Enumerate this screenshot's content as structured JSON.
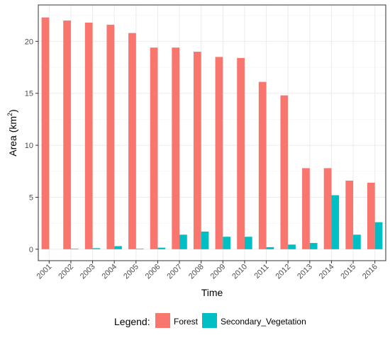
{
  "chart_data": {
    "type": "bar",
    "title": "",
    "xlabel": "Time",
    "ylabel_main": "Area (km",
    "ylabel_sup": "2",
    "ylabel_close": ")",
    "categories": [
      "2001",
      "2002",
      "2003",
      "2004",
      "2005",
      "2006",
      "2007",
      "2008",
      "2009",
      "2010",
      "2011",
      "2012",
      "2013",
      "2014",
      "2015",
      "2016"
    ],
    "series": [
      {
        "name": "Forest",
        "color": "#F8766D",
        "values": [
          22.3,
          22.0,
          21.8,
          21.6,
          20.8,
          19.4,
          19.4,
          19.0,
          18.5,
          18.4,
          16.1,
          14.8,
          7.8,
          7.8,
          6.6,
          6.4
        ]
      },
      {
        "name": "Secondary_Vegetation",
        "color": "#00BFC4",
        "values": [
          0.0,
          0.05,
          0.1,
          0.3,
          0.05,
          0.15,
          1.4,
          1.7,
          1.2,
          1.2,
          0.2,
          0.45,
          0.6,
          5.2,
          1.4,
          2.6
        ]
      }
    ],
    "y_ticks": [
      0,
      5,
      10,
      15,
      20
    ],
    "ylim": [
      -1.1,
      23.5
    ],
    "grid": true,
    "legend": {
      "title": "Legend:",
      "position": "bottom"
    }
  }
}
